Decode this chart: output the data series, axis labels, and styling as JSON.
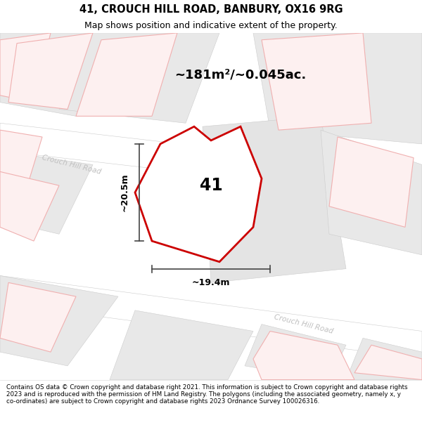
{
  "title_line1": "41, CROUCH HILL ROAD, BANBURY, OX16 9RG",
  "title_line2": "Map shows position and indicative extent of the property.",
  "area_text": "~181m²/~0.045ac.",
  "label_41": "41",
  "dim_width": "~19.4m",
  "dim_height": "~20.5m",
  "footer": "Contains OS data © Crown copyright and database right 2021. This information is subject to Crown copyright and database rights 2023 and is reproduced with the permission of HM Land Registry. The polygons (including the associated geometry, namely x, y co-ordinates) are subject to Crown copyright and database rights 2023 Ordnance Survey 100026316.",
  "bg_color": "#f2f2f2",
  "road_fill": "#ffffff",
  "road_stroke": "#cccccc",
  "gray_block_fill": "#e8e8e8",
  "gray_block_stroke": "#cccccc",
  "pink_stroke": "#f0b0b0",
  "pink_fill": "#fdf0f0",
  "red_polygon_color": "#cc0000",
  "red_polygon_fill": "#ffffff",
  "road_label_color": "#c0c0c0",
  "dim_line_color": "#444444",
  "figsize": [
    6.0,
    6.25
  ],
  "dpi": 100
}
